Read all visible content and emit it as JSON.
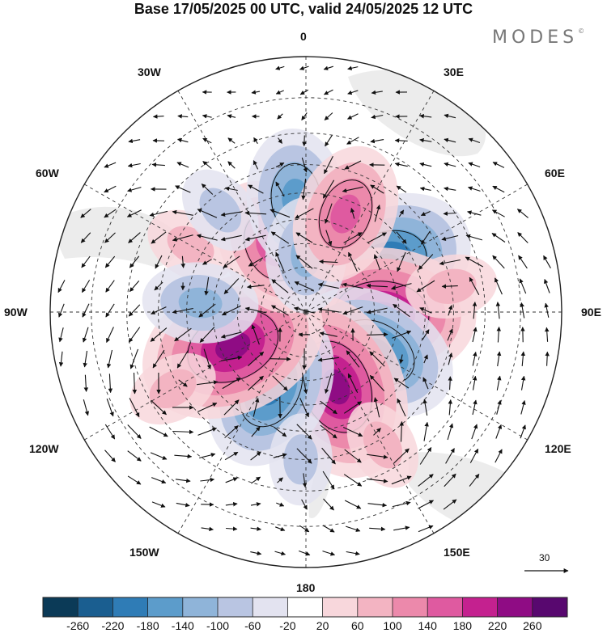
{
  "header": {
    "title": "Base 17/05/2025 00 UTC, valid 24/05/2025 12 UTC",
    "brand": "MODES",
    "brand_mark": "©"
  },
  "map": {
    "projection": "south-polar-stereographic",
    "longitude_labels": {
      "lon_0": "0",
      "lon_30e": "30E",
      "lon_60e": "60E",
      "lon_90e": "90E",
      "lon_120e": "120E",
      "lon_150e": "150E",
      "lon_180": "180",
      "lon_150w": "150W",
      "lon_120w": "120W",
      "lon_90w": "90W",
      "lon_60w": "60W",
      "lon_30w": "30W"
    },
    "grid": "dashed lat/lon lines",
    "vector_reference": {
      "label": "30"
    }
  },
  "colorbar": {
    "tick_labels": [
      "-260",
      "-220",
      "-180",
      "-140",
      "-100",
      "-60",
      "-20",
      "20",
      "60",
      "100",
      "140",
      "180",
      "220",
      "260"
    ],
    "colors": [
      "#0b3a57",
      "#1a5e90",
      "#2f7cb6",
      "#5c9ccb",
      "#8fb4d9",
      "#b9c5e2",
      "#e3e3f0",
      "#ffffff",
      "#f8d7dc",
      "#f3b4c2",
      "#ec89ab",
      "#df5aa0",
      "#c4218f",
      "#8f0c84",
      "#58086f"
    ]
  },
  "anomalies": [
    {
      "type": "neg",
      "center_lon_lat": [
        60,
        -52
      ],
      "level": 5
    },
    {
      "type": "pos",
      "center_lon_lat": [
        92,
        -57
      ],
      "level": 5
    },
    {
      "type": "neg",
      "center_lon_lat": [
        120,
        -55
      ],
      "level": 4
    },
    {
      "type": "pos",
      "center_lon_lat": [
        158,
        -55
      ],
      "level": 5
    },
    {
      "type": "neg",
      "center_lon_lat": [
        -155,
        -54
      ],
      "level": 4
    },
    {
      "type": "pos",
      "center_lon_lat": [
        -115,
        -55
      ],
      "level": 5
    },
    {
      "type": "pos",
      "center_lon_lat": [
        -28,
        -58
      ],
      "level": 3
    },
    {
      "type": "neg",
      "center_lon_lat": [
        -5,
        -42
      ],
      "level": 3
    },
    {
      "type": "neg",
      "center_lon_lat": [
        0,
        -65
      ],
      "level": 2
    },
    {
      "type": "pos",
      "center_lon_lat": [
        22,
        -45
      ],
      "level": 3
    },
    {
      "type": "pos",
      "center_lon_lat": [
        -60,
        -35
      ],
      "level": 1
    },
    {
      "type": "neg",
      "center_lon_lat": [
        -85,
        -45
      ],
      "level": 2
    },
    {
      "type": "pos",
      "center_lon_lat": [
        -120,
        -28
      ],
      "level": 1
    },
    {
      "type": "pos",
      "center_lon_lat": [
        150,
        -28
      ],
      "level": 1
    },
    {
      "type": "pos",
      "center_lon_lat": [
        80,
        -30
      ],
      "level": 1
    },
    {
      "type": "neg",
      "center_lon_lat": [
        -40,
        -35
      ],
      "level": 1
    },
    {
      "type": "neg",
      "center_lon_lat": [
        -178,
        -30
      ],
      "level": 1
    }
  ]
}
